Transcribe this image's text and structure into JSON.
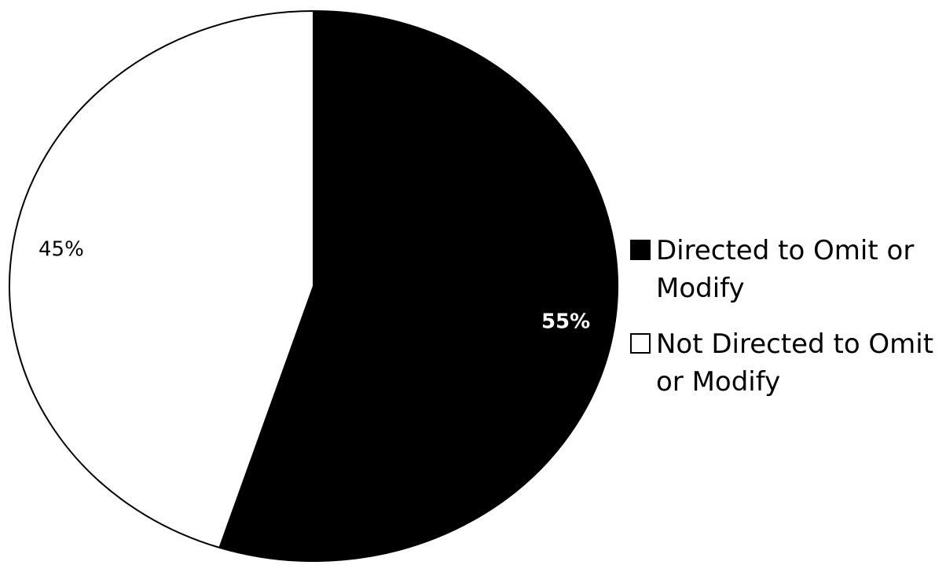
{
  "chart_data": {
    "type": "pie",
    "slices": [
      {
        "name": "Directed to Omit or Modify",
        "value": 55,
        "label": "55%",
        "color": "#000000",
        "label_color": "#ffffff",
        "legend_lines": [
          "Directed to Omit or",
          "Modify"
        ]
      },
      {
        "name": "Not Directed to Omit or Modify",
        "value": 45,
        "label": "45%",
        "color": "#ffffff",
        "label_color": "#000000",
        "legend_lines": [
          "Not Directed to Omit",
          "or Modify"
        ]
      }
    ],
    "start_angle_deg": 0,
    "direction": "clockwise",
    "outline_color": "#000000",
    "legend_position": "right"
  }
}
